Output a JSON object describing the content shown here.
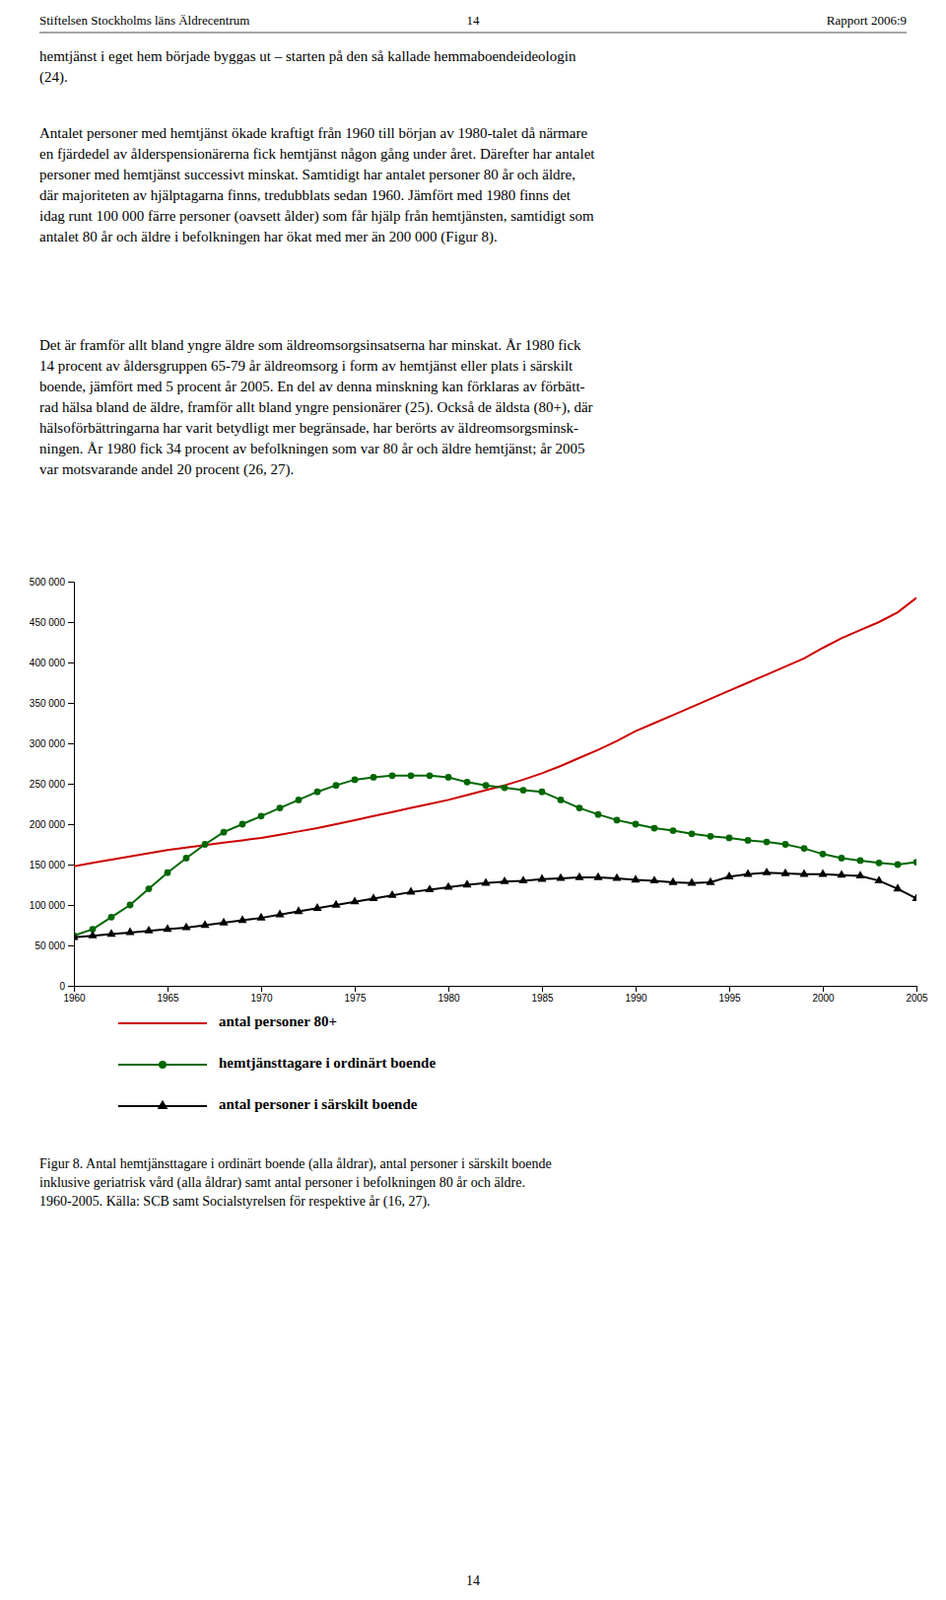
{
  "header": [
    "Stiftelsen Stockholms läns Äldrecentrum",
    "14",
    "Rapport 2006:9"
  ],
  "paragraphs": [
    "hemtjänst i eget hem började byggas ut – starten på den så kallade hemmaboendeideologin\n(24).",
    "Antalet personer med hemtjänst ökade kraftigt från 1960 till början av 1980-talet då närmare\nen fjärdedel av ålderspensionärerna fick hemtjänst någon gång under året. Därefter har antalet\npersoner med hemtjänst successivt minskat. Samtidigt har antalet personer 80 år och äldre,\ndär majoriteten av hjälptagarna finns, tredubblats sedan 1960. Jämfört med 1980 finns det\nidag runt 100 000 färre personer (oavsett ålder) som får hjälp från hemtjänsten, samtidigt som\nantalet 80 år och äldre i befolkningen har ökat med mer än 200 000 (Figur 8).",
    "Det är framför allt bland yngre äldre som äldreomsorgsinsatserna har minskat. År 1980 fick\n14 procent av åldersgruppen 65-79 år äldreomsorg i form av hemtjänst eller plats i särskilt\nboende, jämfört med 5 procent år 2005. En del av denna minskning kan förklaras av förbätt-\nrad hälsa bland de äldre, framför allt bland yngre pensionärer (25). Också de äldsta (80+), där\nhälsoförbättringarna har varit betydligt mer begränsade, har berörts av äldreomsorgsminsk-\nningen. År 1980 fick 34 procent av befolkningen som var 80 år och äldre hemtjänst; år 2005\nvar motsvarande andel 20 procent (26, 27)."
  ],
  "footer": "14",
  "chart_data": {
    "type": "line",
    "caption": "Figur 8. Antal hemtjänsttagare i ordinärt boende (alla åldrar), antal personer i särskilt boende\ninklusive geriatrisk vård (alla åldrar) samt antal personer i befolkningen 80 år och äldre.\n1960-2005. Källa: SCB samt Socialstyrelsen för respektive år (16, 27).",
    "x": [
      1960,
      1961,
      1962,
      1963,
      1964,
      1965,
      1966,
      1967,
      1968,
      1969,
      1970,
      1971,
      1972,
      1973,
      1974,
      1975,
      1976,
      1977,
      1978,
      1979,
      1980,
      1981,
      1982,
      1983,
      1984,
      1985,
      1986,
      1987,
      1988,
      1989,
      1990,
      1991,
      1992,
      1993,
      1994,
      1995,
      1996,
      1997,
      1998,
      1999,
      2000,
      2001,
      2002,
      2003,
      2004,
      2005
    ],
    "series": [
      {
        "name": "antal personer 80+",
        "color": "#cc0000",
        "values": [
          148000,
          152000,
          156000,
          160000,
          164000,
          168000,
          171000,
          174000,
          177000,
          180000,
          183000,
          187000,
          191000,
          195000,
          200000,
          205000,
          210000,
          215000,
          220000,
          225000,
          230000,
          236000,
          242000,
          248000,
          255000,
          263000,
          272000,
          282000,
          292000,
          303000,
          315000,
          325000,
          335000,
          345000,
          355000,
          365000,
          375000,
          385000,
          395000,
          405000,
          418000,
          430000,
          440000,
          450000,
          462000,
          480000
        ]
      },
      {
        "name": "hemtjänsttagare i ordinärt boende",
        "color": "#006600",
        "marker": "circle",
        "values": [
          62000,
          70000,
          85000,
          100000,
          120000,
          140000,
          158000,
          175000,
          190000,
          200000,
          210000,
          220000,
          230000,
          240000,
          248000,
          255000,
          258000,
          260000,
          260000,
          260000,
          258000,
          252000,
          248000,
          245000,
          242000,
          240000,
          230000,
          220000,
          212000,
          205000,
          200000,
          195000,
          192000,
          188000,
          185000,
          183000,
          180000,
          178000,
          175000,
          170000,
          163000,
          158000,
          155000,
          152000,
          150000,
          153000
        ]
      },
      {
        "name": "antal personer i särskilt boende",
        "color": "#000000",
        "marker": "triangle",
        "values": [
          60000,
          62000,
          64000,
          66000,
          68000,
          70000,
          72000,
          75000,
          78000,
          81000,
          84000,
          88000,
          92000,
          96000,
          100000,
          104000,
          108000,
          112000,
          116000,
          119000,
          122000,
          125000,
          127000,
          129000,
          130000,
          132000,
          133000,
          134000,
          134000,
          133000,
          131000,
          130000,
          128000,
          127000,
          128000,
          135000,
          138000,
          140000,
          139000,
          138000,
          138000,
          137000,
          136000,
          130000,
          120000,
          108000
        ]
      }
    ],
    "xlim": [
      1960,
      2005
    ],
    "xticks": [
      1960,
      1965,
      1970,
      1975,
      1980,
      1985,
      1990,
      1995,
      2000,
      2005
    ],
    "ylim": [
      0,
      500000
    ],
    "yticks": [
      0,
      {
        "value": 50000,
        "label": "50 000"
      },
      {
        "value": 100000,
        "label": "100 000"
      },
      {
        "value": 150000,
        "label": "150 000"
      },
      {
        "value": 200000,
        "label": "200 000"
      },
      {
        "value": 250000,
        "label": "250 000"
      },
      {
        "value": 300000,
        "label": "300 000"
      },
      {
        "value": 350000,
        "label": "350 000"
      },
      {
        "value": 400000,
        "label": "400 000"
      },
      {
        "value": 450000,
        "label": "450 000"
      },
      {
        "value": 500000,
        "label": "500 000"
      }
    ],
    "grid": false,
    "legend": "bottom"
  }
}
